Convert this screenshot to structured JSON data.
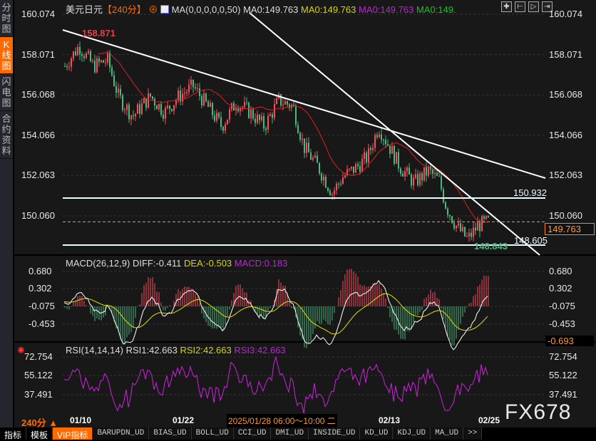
{
  "sidebar": {
    "items": [
      {
        "label": "分时图",
        "active": false
      },
      {
        "label": "K线图",
        "active": true
      },
      {
        "label": "闪电图",
        "active": false
      },
      {
        "label": "合约资料",
        "active": false
      }
    ]
  },
  "header": {
    "symbol": "美元日元",
    "period": "【240分】",
    "ma_title": "MA(0,0,0,0,0,50)",
    "ma_values": [
      "MA0:149.763",
      "MA0:149.763",
      "MA0:149.763",
      "MA0:149."
    ],
    "ma_colors": [
      "#dddddd",
      "#d7d700",
      "#c020e0",
      "#20c020"
    ]
  },
  "toolbar_icons": [
    "crosshair-icon",
    "zoom-left-icon",
    "zoom-right-icon",
    "move-right-icon"
  ],
  "price_axis": {
    "ticks": [
      "160.074",
      "158.071",
      "156.068",
      "154.066",
      "152.063",
      "150.060"
    ],
    "current_price": "149.763",
    "high_label": "158.871",
    "low_label": "148.843",
    "levels": [
      "150.932",
      "148.605"
    ]
  },
  "macd": {
    "title": "MACD(26,12,9)",
    "diff": "DIFF:-0.411",
    "dea": "DEA:-0.503",
    "macd": "MACD:0.183",
    "ticks": [
      "0.680",
      "0.302",
      "-0.075",
      "-0.453"
    ],
    "current": "-0.693"
  },
  "rsi": {
    "title": "RSI(14,14,14)",
    "rsi1": "RSI1:42.663",
    "rsi2": "RSI2:42.663",
    "rsi3": "RSI3:42.663",
    "ticks": [
      "72.754",
      "55.122",
      "37.491"
    ]
  },
  "date_axis": {
    "period": "240分 ▲",
    "dates": [
      "01/10",
      "01/22",
      "02/13",
      "02/25"
    ],
    "cursor": "2025/01/28 06:00～10:00 二"
  },
  "watermark": "FX678",
  "bottom_tabs": [
    "指标",
    "模板",
    "VIP指标",
    "BARUPDN_UD",
    "BIAS_UD",
    "BOLL_UD",
    "CCI_UD",
    "DMI_UD",
    "INSIDE_UD",
    "KD_UD",
    "KDJ_UD",
    "MA_UD",
    ">>"
  ],
  "colors": {
    "up": "#ff4a5a",
    "down": "#4ab880",
    "accent": "#ff6a00",
    "ma50": "#e02020"
  }
}
